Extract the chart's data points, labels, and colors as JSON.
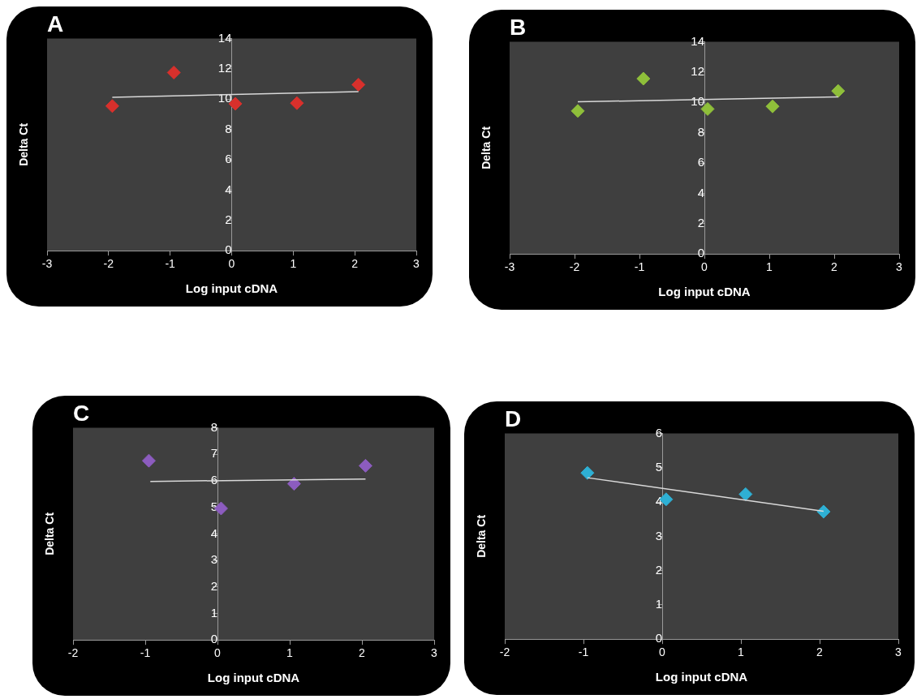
{
  "chart_data": [
    {
      "type": "scatter",
      "title": "A",
      "xlabel": "Log input cDNA",
      "ylabel": "Delta Ct",
      "xlim": [
        -3,
        3
      ],
      "xticks": [
        -3,
        -2,
        -1,
        0,
        1,
        2,
        3
      ],
      "ylim": [
        0,
        14
      ],
      "yticks": [
        0,
        2,
        4,
        6,
        8,
        10,
        12,
        14
      ],
      "series": [
        {
          "type": "scatter",
          "marker": "diamond",
          "color": "#d8302c",
          "x": [
            -1.94,
            -0.94,
            0.06,
            1.06,
            2.06
          ],
          "values": [
            9.55,
            11.76,
            9.7,
            9.74,
            10.96
          ]
        },
        {
          "type": "line",
          "marker": "none",
          "color": "#d9d9d9",
          "x": [
            -1.94,
            2.06
          ],
          "values": [
            10.13,
            10.5
          ]
        }
      ]
    },
    {
      "type": "scatter",
      "title": "B",
      "xlabel": "Log input cDNA",
      "ylabel": "Delta Ct",
      "xlim": [
        -3,
        3
      ],
      "xticks": [
        -3,
        -2,
        -1,
        0,
        1,
        2,
        3
      ],
      "ylim": [
        0,
        14
      ],
      "yticks": [
        0,
        2,
        4,
        6,
        8,
        10,
        12,
        14
      ],
      "series": [
        {
          "type": "scatter",
          "marker": "diamond",
          "color": "#8fbf3a",
          "x": [
            -1.95,
            -0.94,
            0.05,
            1.05,
            2.06
          ],
          "values": [
            9.44,
            11.57,
            9.57,
            9.74,
            10.76
          ]
        },
        {
          "type": "line",
          "marker": "none",
          "color": "#d9d9d9",
          "x": [
            -1.95,
            2.06
          ],
          "values": [
            10.04,
            10.37
          ]
        }
      ]
    },
    {
      "type": "scatter",
      "title": "C",
      "xlabel": "Log input cDNA",
      "ylabel": "Delta Ct",
      "xlim": [
        -2,
        3
      ],
      "xticks": [
        -2,
        -1,
        0,
        1,
        2,
        3
      ],
      "ylim": [
        0,
        8
      ],
      "yticks": [
        0,
        1,
        2,
        3,
        4,
        5,
        6,
        7,
        8
      ],
      "series": [
        {
          "type": "scatter",
          "marker": "diamond",
          "color": "#8c5cbf",
          "x": [
            -0.95,
            0.05,
            1.06,
            2.05
          ],
          "values": [
            6.76,
            4.96,
            5.89,
            6.57
          ]
        },
        {
          "type": "line",
          "marker": "none",
          "color": "#d9d9d9",
          "x": [
            -0.93,
            2.05
          ],
          "values": [
            5.98,
            6.07
          ]
        }
      ]
    },
    {
      "type": "scatter",
      "title": "D",
      "xlabel": "Log input cDNA",
      "ylabel": "Delta Ct",
      "xlim": [
        -2,
        3
      ],
      "xticks": [
        -2,
        -1,
        0,
        1,
        2,
        3
      ],
      "ylim": [
        0,
        6
      ],
      "yticks": [
        0,
        1,
        2,
        3,
        4,
        5,
        6
      ],
      "series": [
        {
          "type": "scatter",
          "marker": "diamond",
          "color": "#2eb0d4",
          "x": [
            -0.95,
            0.05,
            1.06,
            2.05
          ],
          "values": [
            4.85,
            4.08,
            4.23,
            3.72
          ]
        },
        {
          "type": "line",
          "marker": "none",
          "color": "#d9d9d9",
          "x": [
            -0.95,
            2.05
          ],
          "values": [
            4.71,
            3.73
          ]
        }
      ]
    }
  ]
}
